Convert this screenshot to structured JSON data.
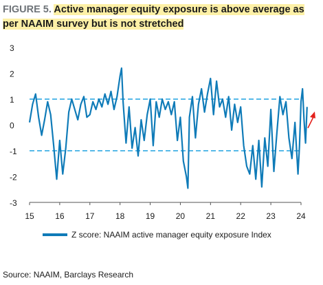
{
  "title": {
    "figure_label": "FIGURE 5.",
    "text": "Active manager equity exposure is above average as per NAAIM survey but is not stretched"
  },
  "source": "Source: NAAIM, Barclays Research",
  "colors": {
    "series": "#0f7bb8",
    "reference_lines": "#56b9e8",
    "arrow": "#e3211c",
    "title_highlight": "#fdf0a6",
    "axis_text": "#1a1a1a"
  },
  "chart_data": {
    "type": "line",
    "title": "Active manager equity exposure is above average as per NAAIM survey but is not stretched",
    "xlabel": "",
    "ylabel": "",
    "xlim": [
      15,
      24.5
    ],
    "ylim": [
      -3,
      3
    ],
    "x_ticks": [
      "15",
      "16",
      "17",
      "18",
      "19",
      "20",
      "21",
      "22",
      "23",
      "24"
    ],
    "y_ticks": [
      "3",
      "2",
      "1",
      "0",
      "-1",
      "-2",
      "-3"
    ],
    "grid": false,
    "legend_position": "bottom",
    "reference_lines": [
      1,
      -1
    ],
    "annotation": "upward red arrow at the right edge",
    "series": [
      {
        "name": "Z score: NAAIM active manager equity exposure Index",
        "x": [
          15.0,
          15.1,
          15.2,
          15.3,
          15.4,
          15.5,
          15.6,
          15.7,
          15.8,
          15.9,
          16.0,
          16.1,
          16.2,
          16.3,
          16.4,
          16.5,
          16.6,
          16.7,
          16.8,
          16.9,
          17.0,
          17.1,
          17.2,
          17.3,
          17.4,
          17.5,
          17.6,
          17.7,
          17.8,
          17.9,
          18.0,
          18.05,
          18.1,
          18.2,
          18.3,
          18.4,
          18.5,
          18.6,
          18.7,
          18.8,
          18.9,
          19.0,
          19.1,
          19.2,
          19.3,
          19.4,
          19.5,
          19.6,
          19.7,
          19.8,
          19.9,
          20.0,
          20.1,
          20.2,
          20.25,
          20.3,
          20.4,
          20.5,
          20.6,
          20.7,
          20.8,
          20.9,
          21.0,
          21.1,
          21.2,
          21.3,
          21.4,
          21.5,
          21.6,
          21.7,
          21.8,
          21.9,
          22.0,
          22.1,
          22.2,
          22.3,
          22.4,
          22.5,
          22.6,
          22.7,
          22.8,
          22.9,
          23.0,
          23.1,
          23.2,
          23.3,
          23.4,
          23.5,
          23.6,
          23.7,
          23.8,
          23.9,
          23.95,
          24.0,
          24.05,
          24.1,
          24.15,
          24.2
        ],
        "values": [
          0.1,
          0.8,
          1.2,
          0.3,
          -0.4,
          0.2,
          0.9,
          0.4,
          -0.8,
          -2.1,
          -0.6,
          -1.9,
          -0.9,
          0.5,
          1.0,
          0.6,
          0.2,
          0.8,
          1.1,
          0.3,
          0.4,
          0.9,
          0.6,
          1.0,
          0.7,
          1.2,
          0.8,
          1.3,
          0.6,
          1.1,
          1.9,
          2.2,
          0.9,
          -0.7,
          0.7,
          -0.9,
          -0.1,
          -1.2,
          0.2,
          -0.6,
          0.4,
          1.0,
          -0.8,
          0.9,
          0.3,
          1.0,
          0.6,
          0.9,
          0.4,
          0.9,
          -0.6,
          0.3,
          -1.4,
          -2.0,
          -2.45,
          0.3,
          1.1,
          -0.5,
          0.8,
          1.4,
          0.5,
          1.2,
          1.8,
          0.4,
          1.7,
          0.7,
          1.0,
          0.3,
          1.1,
          -0.2,
          0.8,
          0.1,
          0.7,
          -0.8,
          -1.6,
          -1.9,
          -0.8,
          -2.1,
          -0.6,
          -2.4,
          -0.5,
          -1.6,
          0.6,
          -1.8,
          -0.3,
          1.1,
          0.4,
          0.9,
          -0.5,
          -1.3,
          0.1,
          -1.9,
          -0.8,
          0.9,
          1.4,
          0.2,
          -0.7,
          0.7
        ]
      }
    ]
  }
}
